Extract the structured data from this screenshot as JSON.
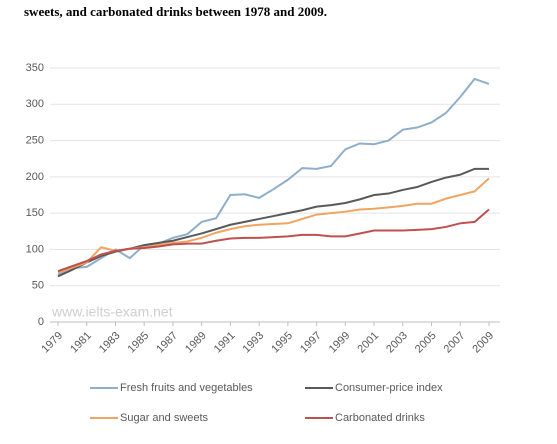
{
  "chart_data": {
    "type": "line",
    "title": "sweets, and carbonated drinks between 1978 and 2009.",
    "watermark": "www.ielts-exam.net",
    "x": [
      1979,
      1980,
      1981,
      1982,
      1983,
      1984,
      1985,
      1986,
      1987,
      1988,
      1989,
      1990,
      1991,
      1992,
      1993,
      1994,
      1995,
      1996,
      1997,
      1998,
      1999,
      2000,
      2001,
      2002,
      2003,
      2004,
      2005,
      2006,
      2007,
      2008,
      2009
    ],
    "xlim": [
      1979,
      2009
    ],
    "xticks": [
      1979,
      1981,
      1983,
      1985,
      1987,
      1989,
      1991,
      1993,
      1995,
      1997,
      1999,
      2001,
      2003,
      2005,
      2007,
      2009
    ],
    "ylim": [
      0,
      350
    ],
    "yticks": [
      0,
      50,
      100,
      150,
      200,
      250,
      300,
      350
    ],
    "grid": true,
    "legend": "bottom",
    "series": [
      {
        "name": "Fresh fruits and vegetables",
        "color": "#8eaecb",
        "values": [
          65,
          74,
          76,
          88,
          100,
          88,
          106,
          108,
          116,
          121,
          138,
          143,
          175,
          176,
          171,
          183,
          196,
          212,
          211,
          215,
          238,
          246,
          245,
          250,
          265,
          268,
          275,
          288,
          310,
          335,
          328
        ]
      },
      {
        "name": "Consumer-price index",
        "color": "#595959",
        "values": [
          63,
          72,
          82,
          91,
          97,
          101,
          106,
          109,
          112,
          117,
          122,
          128,
          134,
          138,
          142,
          146,
          150,
          154,
          159,
          161,
          164,
          169,
          175,
          177,
          182,
          186,
          193,
          199,
          203,
          211,
          211
        ]
      },
      {
        "name": "Sugar and sweets",
        "color": "#f0a462",
        "values": [
          68,
          75,
          82,
          103,
          98,
          101,
          103,
          106,
          109,
          111,
          116,
          123,
          128,
          132,
          134,
          135,
          136,
          142,
          148,
          150,
          152,
          155,
          156,
          158,
          160,
          163,
          163,
          170,
          175,
          180,
          198
        ]
      },
      {
        "name": "Carbonated drinks",
        "color": "#c0504d",
        "values": [
          70,
          77,
          84,
          93,
          98,
          101,
          102,
          104,
          107,
          108,
          108,
          112,
          115,
          116,
          116,
          117,
          118,
          120,
          120,
          118,
          118,
          122,
          126,
          126,
          126,
          127,
          128,
          131,
          136,
          138,
          155
        ]
      }
    ]
  }
}
